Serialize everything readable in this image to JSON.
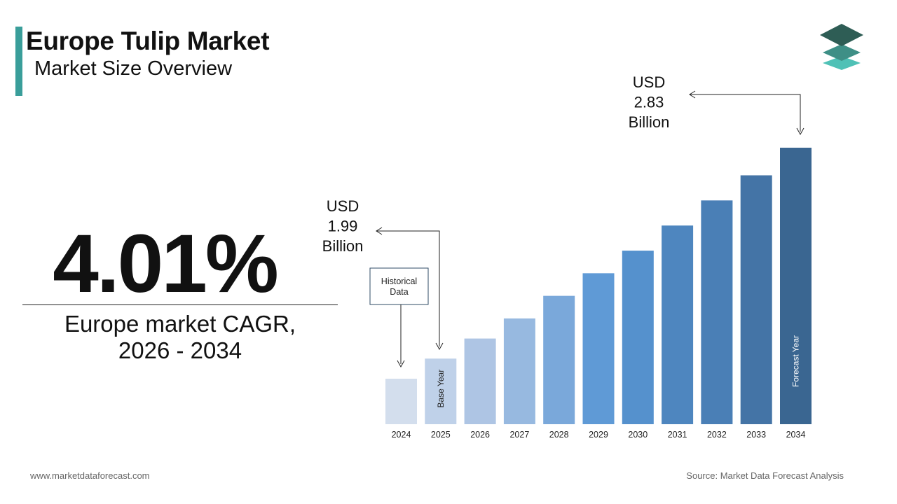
{
  "header": {
    "title": "Europe Tulip Market",
    "subtitle": "Market Size Overview",
    "accent_color": "#3a9e9a"
  },
  "logo": {
    "icon": "stacked-layers-logo-icon"
  },
  "cagr": {
    "value": "4.01%",
    "label_line1": "Europe market CAGR,",
    "label_line2": "2026 - 2034"
  },
  "chart_data": {
    "type": "bar",
    "categories": [
      "2024",
      "2025",
      "2026",
      "2027",
      "2028",
      "2029",
      "2030",
      "2031",
      "2032",
      "2033",
      "2034"
    ],
    "values": [
      1.91,
      1.99,
      2.07,
      2.15,
      2.24,
      2.33,
      2.42,
      2.52,
      2.62,
      2.72,
      2.83
    ],
    "colors": [
      "#d3deed",
      "#bfd1e9",
      "#aec5e4",
      "#97b9e0",
      "#7aa8da",
      "#5f9ad6",
      "#5591cd",
      "#4e86bf",
      "#4a7fb6",
      "#4474a6",
      "#3a6691"
    ],
    "annotations": {
      "historical_box": [
        "Historical",
        "Data"
      ],
      "base_year_label": "Base Year",
      "forecast_year_label": "Forecast Year",
      "start_value": [
        "USD",
        "1.99",
        "Billion"
      ],
      "end_value": [
        "USD",
        "2.83",
        "Billion"
      ]
    },
    "title": "",
    "xlabel": "",
    "ylabel": "",
    "grid": false
  },
  "footer": {
    "website": "www.marketdataforecast.com",
    "source": "Source: Market Data Forecast Analysis"
  }
}
